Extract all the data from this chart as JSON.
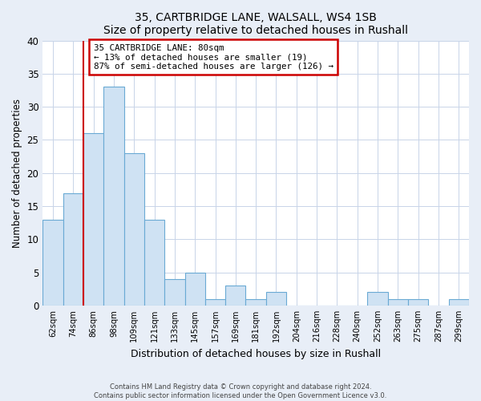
{
  "title": "35, CARTBRIDGE LANE, WALSALL, WS4 1SB",
  "subtitle": "Size of property relative to detached houses in Rushall",
  "xlabel": "Distribution of detached houses by size in Rushall",
  "ylabel": "Number of detached properties",
  "bar_labels": [
    "62sqm",
    "74sqm",
    "86sqm",
    "98sqm",
    "109sqm",
    "121sqm",
    "133sqm",
    "145sqm",
    "157sqm",
    "169sqm",
    "181sqm",
    "192sqm",
    "204sqm",
    "216sqm",
    "228sqm",
    "240sqm",
    "252sqm",
    "263sqm",
    "275sqm",
    "287sqm",
    "299sqm"
  ],
  "bar_values": [
    13,
    17,
    26,
    33,
    23,
    13,
    4,
    5,
    1,
    3,
    1,
    2,
    0,
    0,
    0,
    0,
    2,
    1,
    1,
    0,
    1
  ],
  "bar_color": "#cfe2f3",
  "bar_edge_color": "#6aaad4",
  "ylim": [
    0,
    40
  ],
  "yticks": [
    0,
    5,
    10,
    15,
    20,
    25,
    30,
    35,
    40
  ],
  "annotation_text_line1": "35 CARTBRIDGE LANE: 80sqm",
  "annotation_text_line2": "← 13% of detached houses are smaller (19)",
  "annotation_text_line3": "87% of semi-detached houses are larger (126) →",
  "annotation_box_color": "#ffffff",
  "annotation_border_color": "#cc0000",
  "marker_line_color": "#cc0000",
  "footer_line1": "Contains HM Land Registry data © Crown copyright and database right 2024.",
  "footer_line2": "Contains public sector information licensed under the Open Government Licence v3.0.",
  "background_color": "#e8eef7",
  "plot_background_color": "#ffffff",
  "grid_color": "#c8d4e8"
}
